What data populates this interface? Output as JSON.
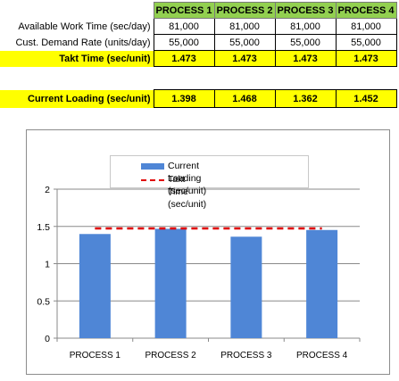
{
  "table": {
    "headers": [
      "PROCESS 1",
      "PROCESS 2",
      "PROCESS 3",
      "PROCESS 4"
    ],
    "rows": [
      {
        "label": "Available Work Time (sec/day)",
        "values": [
          "81,000",
          "81,000",
          "81,000",
          "81,000"
        ]
      },
      {
        "label": "Cust. Demand Rate (units/day)",
        "values": [
          "55,000",
          "55,000",
          "55,000",
          "55,000"
        ]
      },
      {
        "label": "Takt Time (sec/unit)",
        "values": [
          "1.473",
          "1.473",
          "1.473",
          "1.473"
        ]
      }
    ],
    "loading": {
      "label": "Current Loading (sec/unit)",
      "values": [
        "1.398",
        "1.468",
        "1.362",
        "1.452"
      ]
    }
  },
  "colors": {
    "header_green": "#92d050",
    "highlight_yellow": "#ffff00",
    "bar_blue": "#4f86d6",
    "takt_red": "#e00000"
  },
  "chart_data": {
    "type": "bar",
    "categories": [
      "PROCESS 1",
      "PROCESS 2",
      "PROCESS 3",
      "PROCESS 4"
    ],
    "series": [
      {
        "name": "Current Loading (sec/unit)",
        "type": "bar",
        "values": [
          1.398,
          1.468,
          1.362,
          1.452
        ]
      },
      {
        "name": "Takt Time (sec/unit)",
        "type": "line",
        "style": "dashed",
        "values": [
          1.473,
          1.473,
          1.473,
          1.473
        ]
      }
    ],
    "yticks": [
      "0",
      "0.5",
      "1",
      "1.5",
      "2"
    ],
    "ylim": [
      0,
      2
    ],
    "grid": true,
    "legend": "top"
  }
}
